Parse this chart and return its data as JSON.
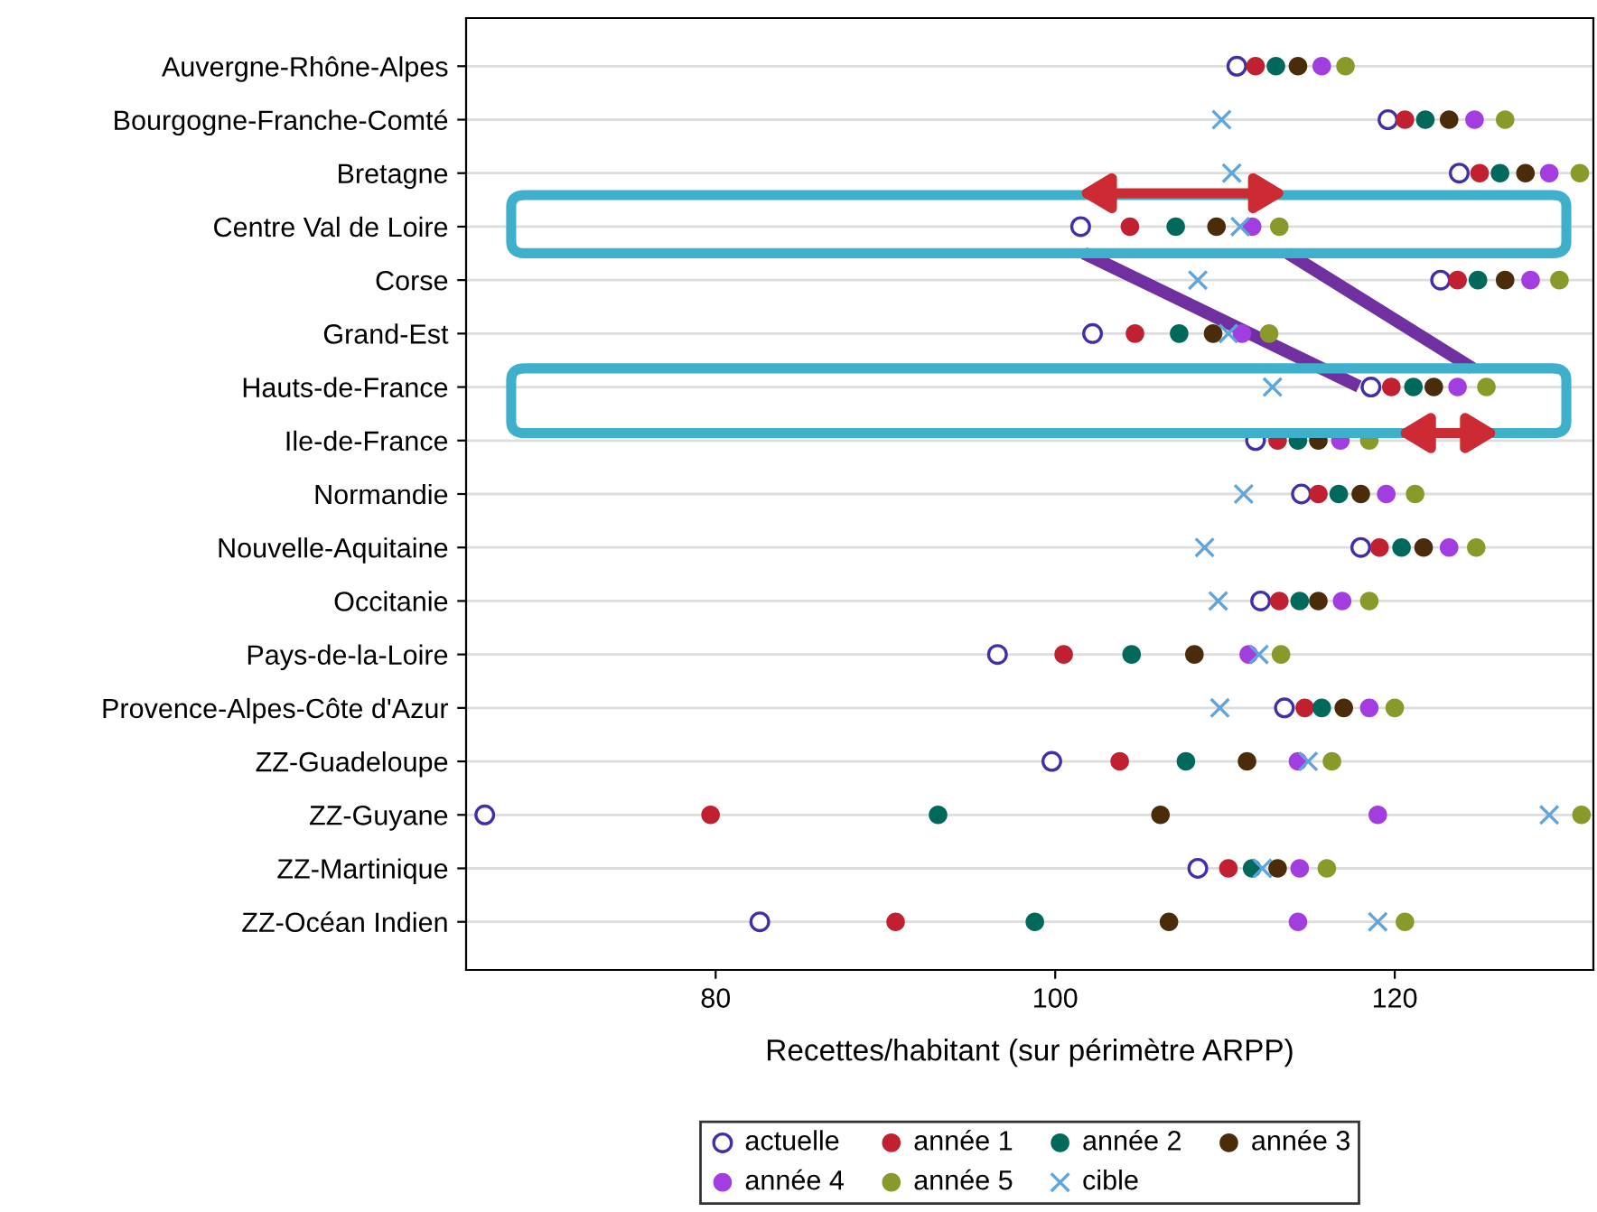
{
  "chart_data": {
    "type": "scatter",
    "orientation": "horizontal",
    "xlabel": "Recettes/habitant (sur périmètre ARPP)",
    "categories": [
      "Auvergne-Rhône-Alpes",
      "Bourgogne-Franche-Comté",
      "Bretagne",
      "Centre Val de Loire",
      "Corse",
      "Grand-Est",
      "Hauts-de-France",
      "Ile-de-France",
      "Normandie",
      "Nouvelle-Aquitaine",
      "Occitanie",
      "Pays-de-la-Loire",
      "Provence-Alpes-Côte d'Azur",
      "ZZ-Guadeloupe",
      "ZZ-Guyane",
      "ZZ-Martinique",
      "ZZ-Océan Indien"
    ],
    "xlim": [
      65.3,
      131.7
    ],
    "xticks": [
      80,
      100,
      120
    ],
    "grid": "y",
    "legend": "bottom",
    "series": [
      {
        "name": "actuelle",
        "color": "#3f2fa8",
        "marker": "circle",
        "values": [
          110.7,
          119.6,
          123.8,
          101.5,
          122.7,
          102.2,
          118.6,
          111.8,
          114.5,
          118.0,
          112.1,
          96.6,
          113.5,
          99.8,
          66.4,
          108.4,
          82.6
        ]
      },
      {
        "name": "année 1",
        "color": "#c0202f",
        "marker": "circle",
        "values": [
          111.8,
          120.6,
          125.0,
          104.4,
          123.7,
          104.7,
          119.8,
          113.1,
          115.5,
          119.1,
          113.2,
          100.5,
          114.7,
          103.8,
          79.7,
          110.2,
          90.6
        ]
      },
      {
        "name": "année 2",
        "color": "#00695c",
        "marker": "circle",
        "values": [
          113.0,
          121.8,
          126.2,
          107.1,
          124.9,
          107.3,
          121.1,
          114.3,
          116.7,
          120.4,
          114.4,
          104.5,
          115.7,
          107.7,
          93.1,
          111.6,
          98.8
        ]
      },
      {
        "name": "année 3",
        "color": "#4a2b0a",
        "marker": "circle",
        "values": [
          114.3,
          123.2,
          127.7,
          109.5,
          126.5,
          109.3,
          122.3,
          115.5,
          118.0,
          121.7,
          115.5,
          108.2,
          117.0,
          111.3,
          106.2,
          113.1,
          106.7
        ]
      },
      {
        "name": "année 4",
        "color": "#a23de0",
        "marker": "circle",
        "values": [
          115.7,
          124.7,
          129.1,
          111.6,
          128.0,
          111.0,
          123.7,
          116.8,
          119.5,
          123.2,
          116.9,
          111.4,
          118.5,
          114.3,
          119.0,
          114.4,
          114.3
        ]
      },
      {
        "name": "année 5",
        "color": "#8a9a2a",
        "marker": "circle",
        "values": [
          117.1,
          126.5,
          130.9,
          113.2,
          129.7,
          112.6,
          125.4,
          118.5,
          121.2,
          124.8,
          118.5,
          113.3,
          120.0,
          116.3,
          131.0,
          116.0,
          120.6
        ]
      },
      {
        "name": "cible",
        "color": "#5da5dc",
        "marker": "cross",
        "values": [
          null,
          109.8,
          110.4,
          110.9,
          108.4,
          110.2,
          112.8,
          null,
          111.1,
          108.8,
          109.6,
          112.0,
          109.7,
          114.9,
          129.1,
          112.2,
          119.0
        ]
      }
    ]
  }
}
